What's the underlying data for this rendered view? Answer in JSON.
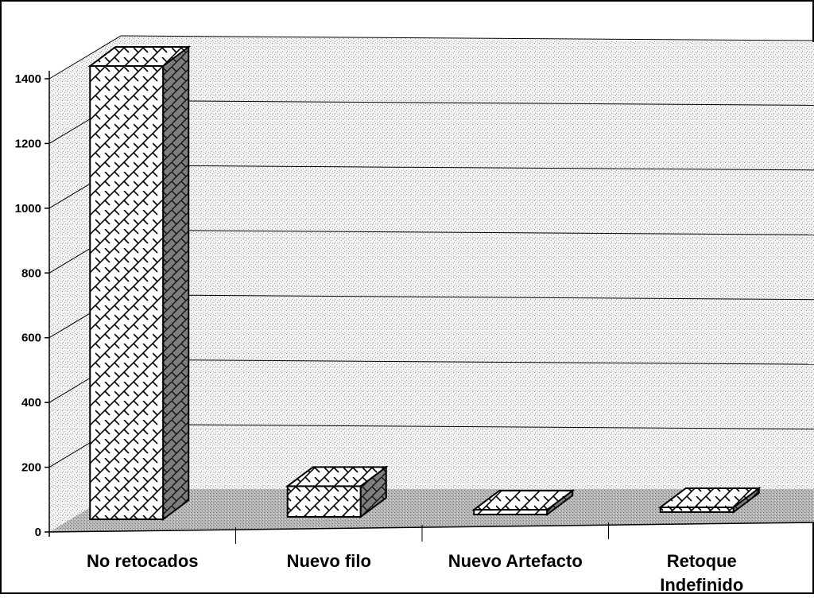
{
  "chart_data": {
    "type": "bar",
    "title": "",
    "xlabel": "",
    "ylabel": "",
    "categories": [
      "No retocados",
      "Nuevo filo",
      "Nuevo Artefacto",
      "Retoque Indefinido"
    ],
    "values": [
      1400,
      95,
      8,
      5
    ],
    "ylim": [
      0,
      1400
    ],
    "yticks": [
      0,
      200,
      400,
      600,
      800,
      1000,
      1200,
      1400
    ],
    "grid": true,
    "legend": "none",
    "style": "3d-hatched"
  }
}
